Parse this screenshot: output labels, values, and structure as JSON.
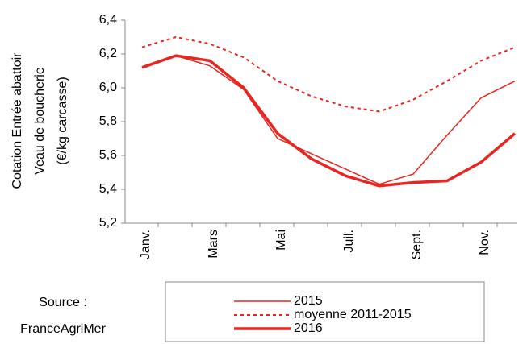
{
  "chart_data": {
    "type": "line",
    "y_label": [
      "Cotation Entrée abattoir",
      "Veau de boucherie",
      "(€/kg carcasse)"
    ],
    "categories": [
      "Janv.",
      null,
      "Mars",
      null,
      "Mai",
      null,
      "Juil.",
      null,
      "Sept.",
      null,
      "Nov.",
      null
    ],
    "series": [
      {
        "name": "2015",
        "color": "#e8251f",
        "style": "thin",
        "values": [
          6.12,
          6.19,
          6.13,
          5.99,
          5.7,
          5.61,
          5.52,
          5.43,
          5.49,
          5.72,
          5.94,
          6.04
        ]
      },
      {
        "name": "moyenne 2011-2015",
        "color": "#e8251f",
        "style": "dotted",
        "values": [
          6.24,
          6.3,
          6.26,
          6.18,
          6.04,
          5.95,
          5.89,
          5.86,
          5.93,
          6.04,
          6.16,
          6.24
        ]
      },
      {
        "name": "2016",
        "color": "#e8251f",
        "style": "thick",
        "values": [
          6.12,
          6.19,
          6.16,
          6.0,
          5.73,
          5.58,
          5.48,
          5.42,
          5.44,
          5.45,
          5.56,
          5.73
        ]
      }
    ],
    "ylim": [
      5.2,
      6.4
    ],
    "yticks": [
      {
        "value": 5.2,
        "label": "5,2"
      },
      {
        "value": 5.4,
        "label": "5,4"
      },
      {
        "value": 5.6,
        "label": "5,6"
      },
      {
        "value": 5.8,
        "label": "5,8"
      },
      {
        "value": 6.0,
        "label": "6,0"
      },
      {
        "value": 6.2,
        "label": "6,2"
      },
      {
        "value": 6.4,
        "label": "6,4"
      }
    ],
    "legend": "bottom",
    "source": [
      "Source :",
      "FranceAgriMer"
    ]
  }
}
